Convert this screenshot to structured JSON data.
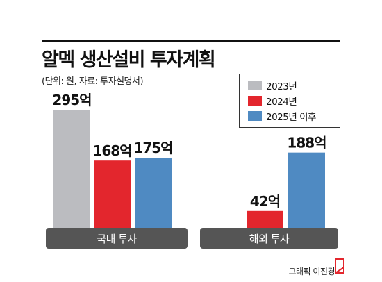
{
  "title": "알멕 생산설비 투자계획",
  "subtitle": "(단위: 원, 자료: 투자설명서)",
  "credit": "그래픽 이진경",
  "colors": {
    "2023": "#bbbcc0",
    "2024": "#e3262d",
    "2025": "#4f8ac2",
    "group_band": "#555555"
  },
  "chart_data": {
    "type": "bar",
    "title": "알멕 생산설비 투자계획",
    "subtitle": "(단위: 원, 자료: 투자설명서)",
    "unit": "억",
    "categories": [
      "국내 투자",
      "해외 투자"
    ],
    "series": [
      {
        "name": "2023년",
        "values": [
          295,
          null
        ],
        "labels": [
          "295억",
          ""
        ]
      },
      {
        "name": "2024년",
        "values": [
          168,
          42
        ],
        "labels": [
          "168억",
          "42억"
        ]
      },
      {
        "name": "2025년 이후",
        "values": [
          175,
          188
        ],
        "labels": [
          "175억",
          "188억"
        ]
      }
    ],
    "legend": "top-right",
    "grid": false,
    "ylim": [
      0,
      300
    ]
  }
}
